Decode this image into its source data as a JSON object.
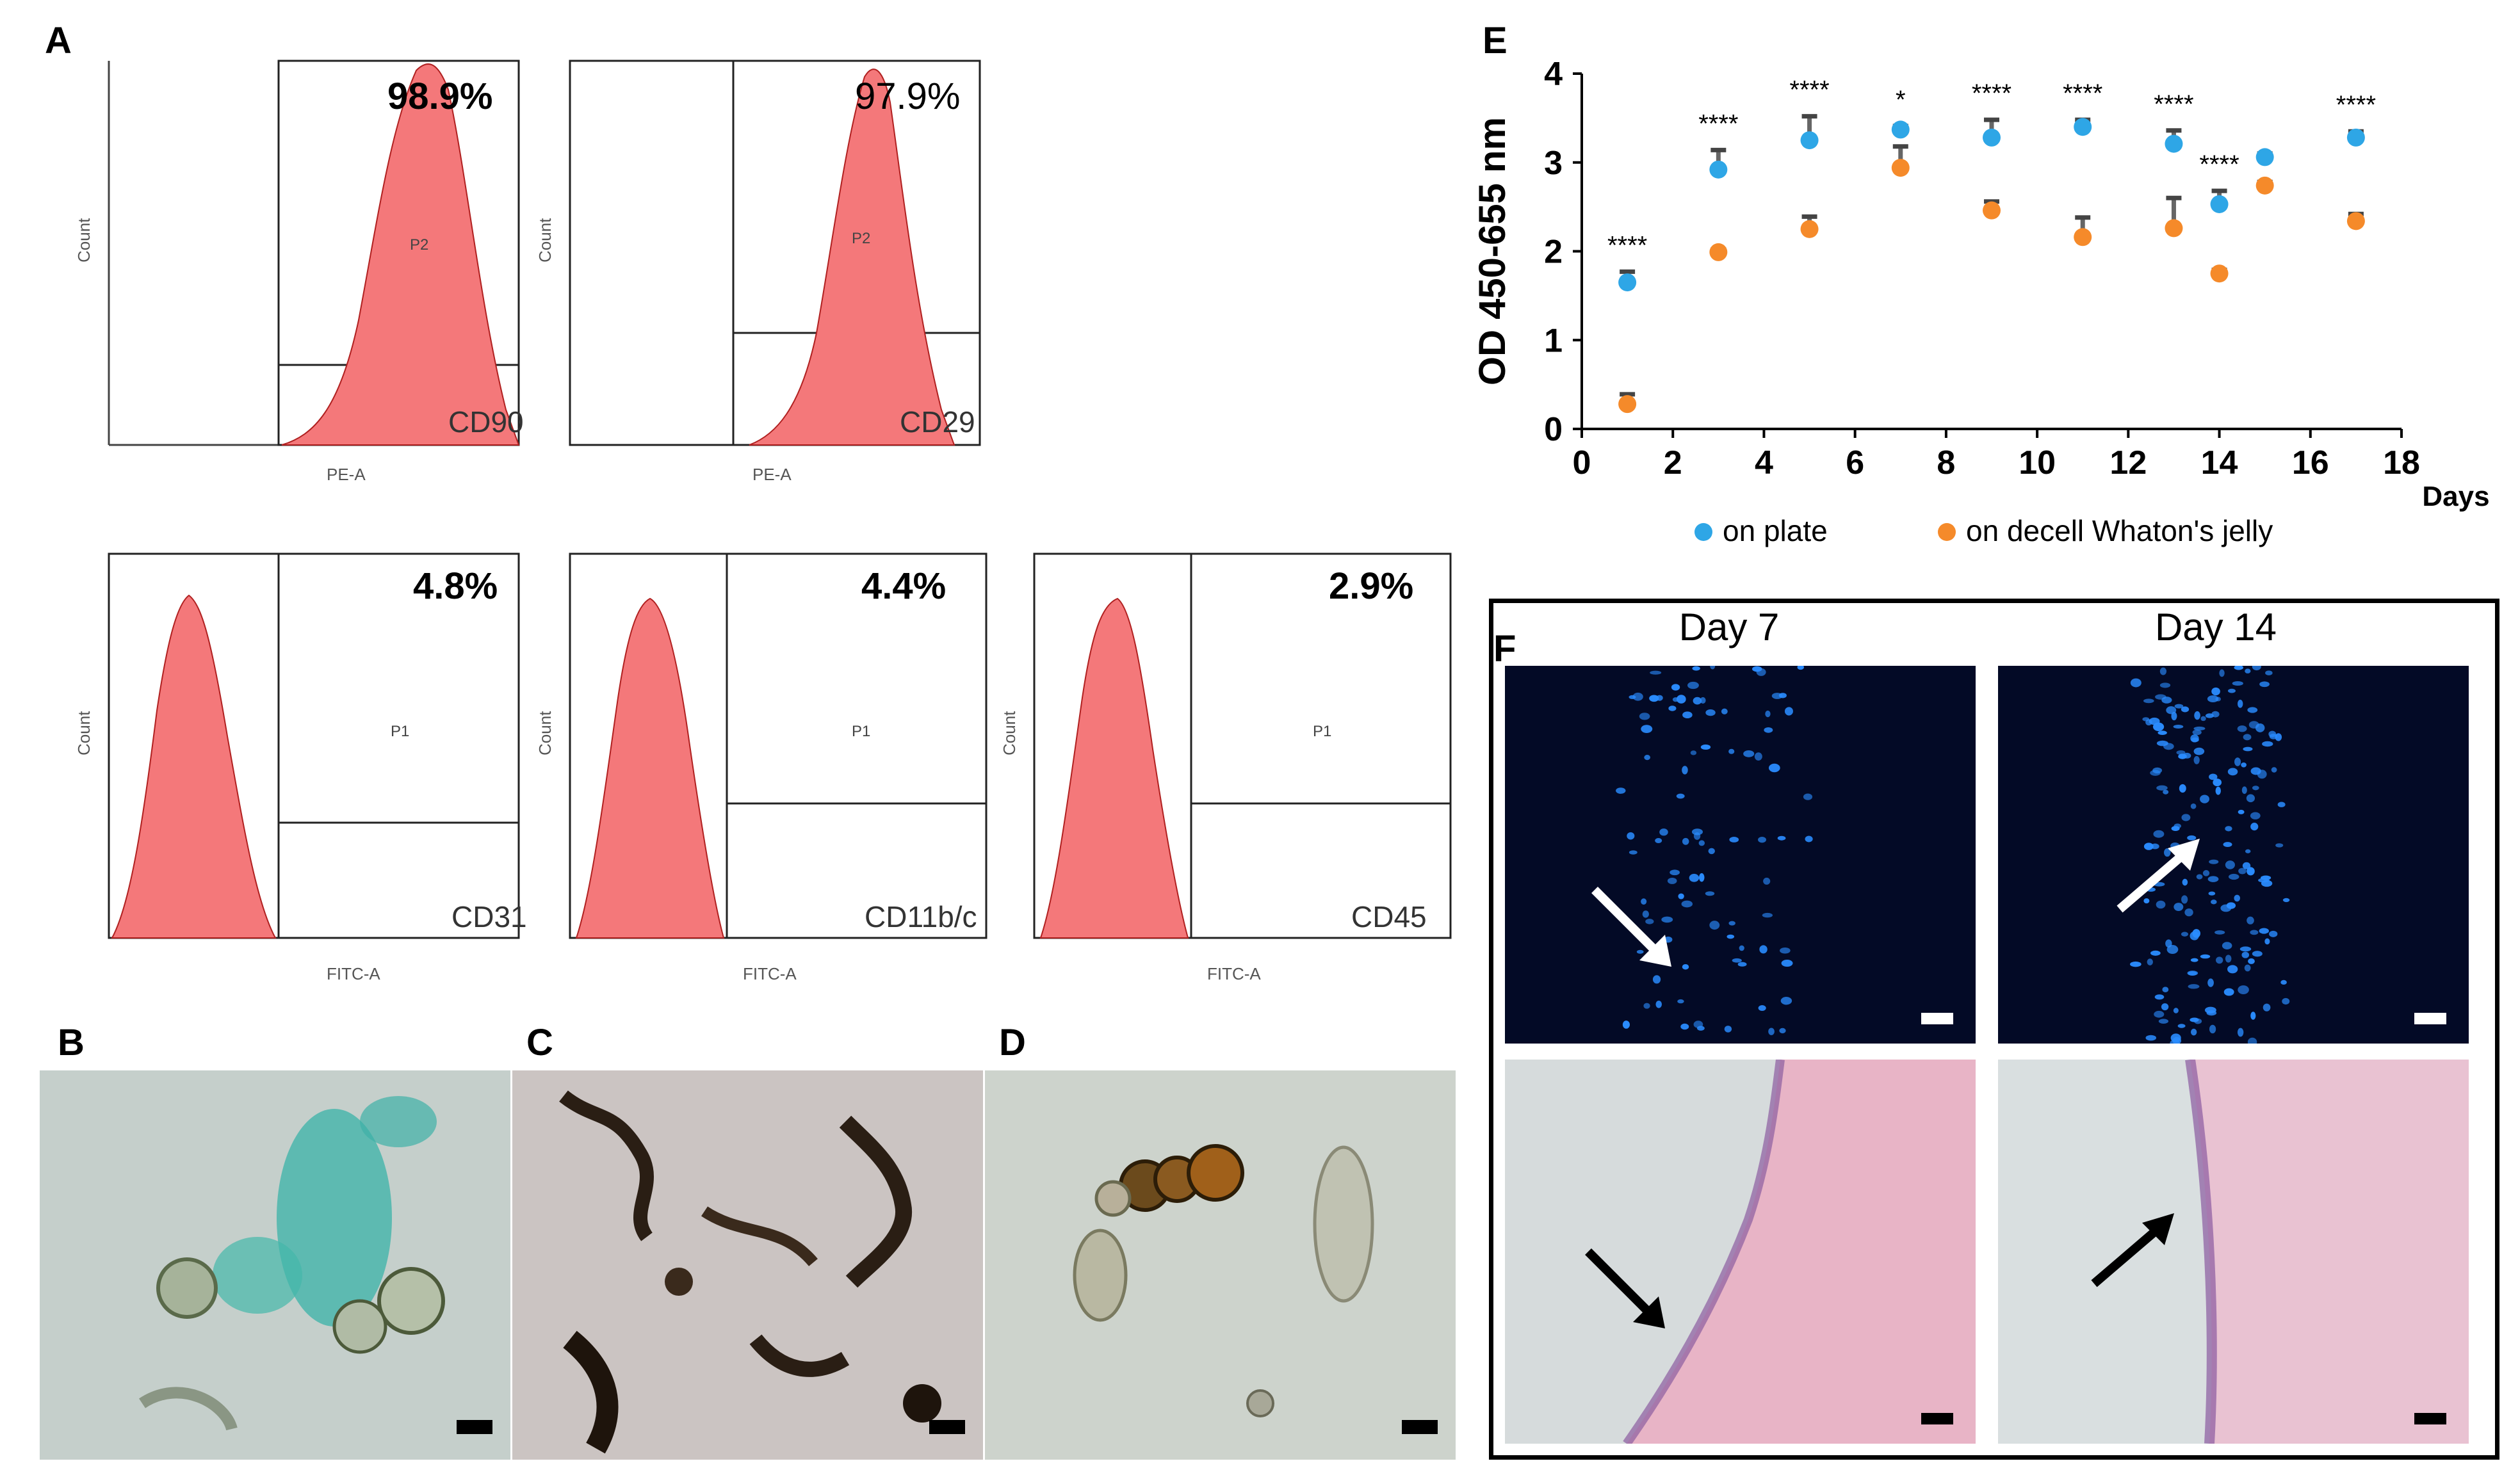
{
  "panels": {
    "a": "A",
    "b": "B",
    "c": "C",
    "d": "D",
    "e": "E",
    "f": "F"
  },
  "flow_plots": [
    {
      "marker": "CD90",
      "percent": "98.9%",
      "gate": "P2",
      "xaxis": "PE-A",
      "ylabel": "Count"
    },
    {
      "marker": "CD29",
      "percent": "97.9%",
      "gate": "P2",
      "xaxis": "PE-A",
      "ylabel": "Count"
    },
    {
      "marker": "CD31",
      "percent": "4.8%",
      "gate": "P1",
      "xaxis": "FITC-A",
      "ylabel": "Count"
    },
    {
      "marker": "CD11b/c",
      "percent": "4.4%",
      "gate": "P1",
      "xaxis": "FITC-A",
      "ylabel": "Count"
    },
    {
      "marker": "CD45",
      "percent": "2.9%",
      "gate": "P1",
      "xaxis": "FITC-A",
      "ylabel": "Count"
    }
  ],
  "panel_f": {
    "day7": "Day 7",
    "day14": "Day 14"
  },
  "colors": {
    "histogram": "#f4787a",
    "on_plate": "#2ea6e6",
    "decell": "#f58a2a",
    "fluor_bg": "#030a26",
    "nuclei": "#2a8cff"
  },
  "chart_data": {
    "type": "scatter",
    "ylabel": "OD 450-655 nm",
    "xlabel": "Days",
    "xlim": [
      0,
      18
    ],
    "ylim": [
      0,
      4
    ],
    "xticks": [
      0,
      2,
      4,
      6,
      8,
      10,
      12,
      14,
      16,
      18
    ],
    "yticks": [
      0,
      1,
      2,
      3,
      4
    ],
    "legend_position": "bottom",
    "series": [
      {
        "name": "on plate",
        "x": [
          1,
          3,
          5,
          7,
          9,
          11,
          13,
          14,
          15,
          17
        ],
        "y": [
          1.65,
          2.92,
          3.25,
          3.37,
          3.28,
          3.4,
          3.21,
          2.53,
          3.06,
          3.28
        ],
        "err": [
          0.12,
          0.22,
          0.27,
          0.04,
          0.2,
          0.08,
          0.15,
          0.15,
          0.04,
          0.07
        ]
      },
      {
        "name": "on decell Whaton's jelly",
        "x": [
          1,
          3,
          5,
          7,
          9,
          11,
          13,
          14,
          15,
          17
        ],
        "y": [
          0.28,
          1.99,
          2.25,
          2.94,
          2.46,
          2.16,
          2.26,
          1.75,
          2.74,
          2.34
        ],
        "err": [
          0.11,
          0.03,
          0.14,
          0.24,
          0.1,
          0.22,
          0.34,
          0.04,
          0.04,
          0.08
        ]
      }
    ],
    "annotations": [
      {
        "x": 1,
        "text": "****"
      },
      {
        "x": 3,
        "text": "****"
      },
      {
        "x": 5,
        "text": "****"
      },
      {
        "x": 7,
        "text": "*"
      },
      {
        "x": 9,
        "text": "****"
      },
      {
        "x": 11,
        "text": "****"
      },
      {
        "x": 13,
        "text": "****"
      },
      {
        "x": 14,
        "text": "****"
      },
      {
        "x": 17,
        "text": "****"
      }
    ]
  }
}
